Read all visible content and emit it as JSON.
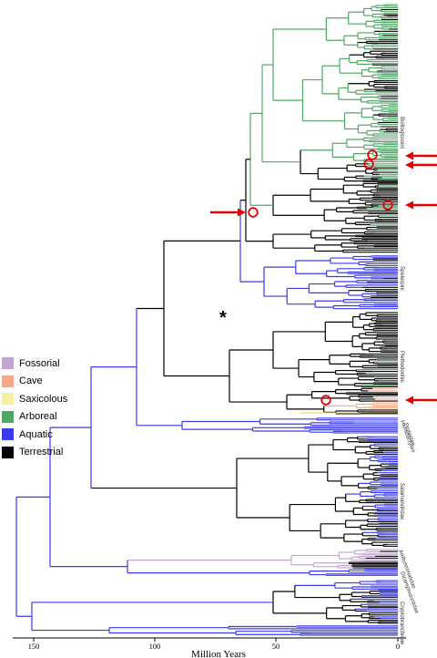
{
  "legend": {
    "items": [
      {
        "label": "Fossorial",
        "color": "#c2a5d0"
      },
      {
        "label": "Cave",
        "color": "#f4a98a"
      },
      {
        "label": "Saxicolous",
        "color": "#f7efa2"
      },
      {
        "label": "Arboreal",
        "color": "#4fa866"
      },
      {
        "label": "Aquatic",
        "color": "#3a3af0"
      },
      {
        "label": "Terrestrial",
        "color": "#000000"
      }
    ]
  },
  "axis": {
    "title": "Million Years",
    "ticks": [
      "150",
      "100",
      "50",
      "0"
    ],
    "tick_values": [
      150,
      100,
      50,
      0
    ]
  },
  "clades": [
    "Bolitoglossini",
    "Spelerpini",
    "Plethodontini",
    "Hemidactyliini",
    "Proteidae",
    "Salamandridae",
    "Ambystomatidae",
    "Dicamptodontidae",
    "Cryptobranchidae"
  ],
  "annotations": {
    "star": "*"
  },
  "colors": {
    "branch_arboreal": "#4fa866",
    "branch_aquatic": "#3a3af0",
    "branch_terrestrial": "#000000",
    "branch_saxicolous": "#e8dc8a",
    "branch_cave": "#f4a98a",
    "branch_fossorial": "#c2a5d0",
    "highlight": "#e60000"
  }
}
